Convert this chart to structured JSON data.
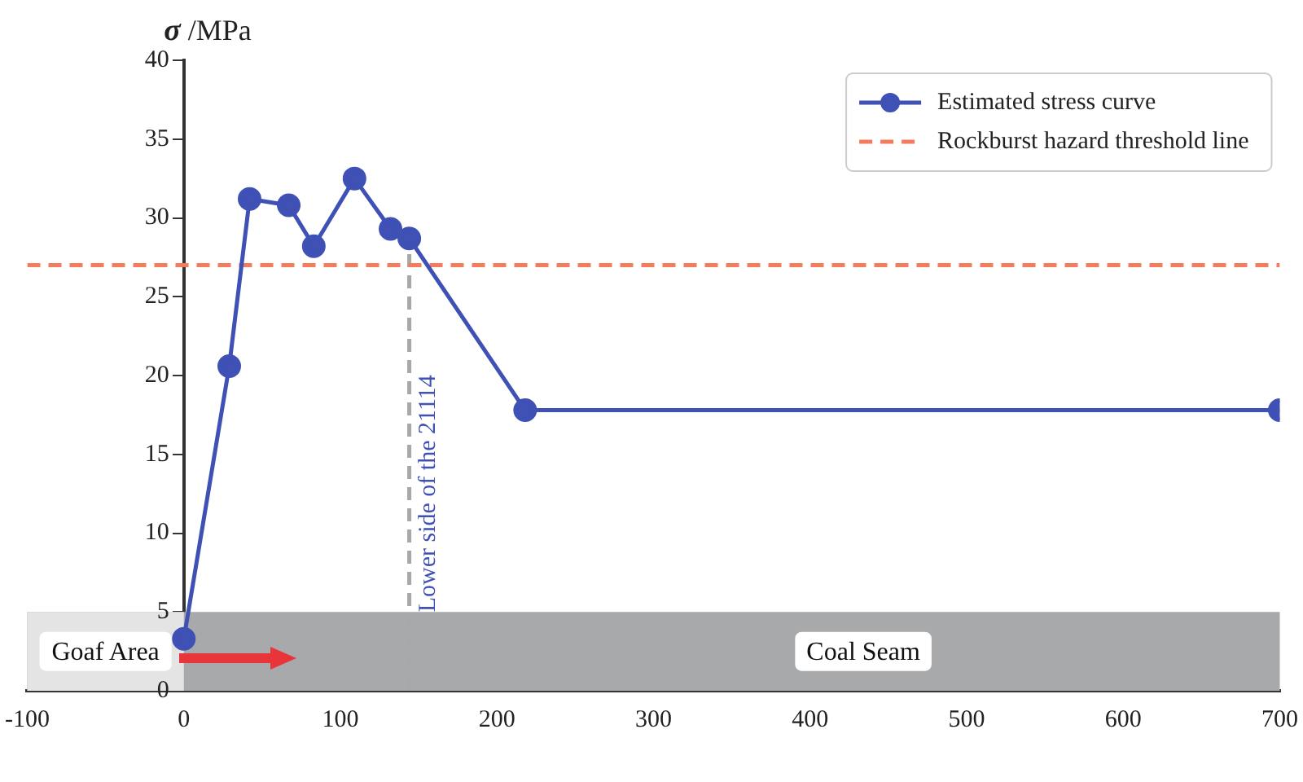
{
  "chart_data": {
    "type": "line",
    "ylabel": "σ /MPa",
    "x": [
      0,
      29,
      42,
      67,
      83,
      109,
      132,
      144,
      218,
      700
    ],
    "series": [
      {
        "name": "Estimated stress curve",
        "color": "#3f51b5",
        "values": [
          3.3,
          20.6,
          31.2,
          30.8,
          28.2,
          32.5,
          29.3,
          28.7,
          17.8,
          17.8
        ]
      }
    ],
    "xlim": [
      -100,
      700
    ],
    "xticks": [
      -100,
      0,
      100,
      200,
      300,
      400,
      500,
      600,
      700
    ],
    "ylim": [
      0,
      40
    ],
    "yticks": [
      0,
      5,
      10,
      15,
      20,
      25,
      30,
      35,
      40
    ],
    "marker": "circle",
    "line_style": "solid",
    "grid": false,
    "legend": "top right",
    "ref_lines": [
      {
        "axis": "y",
        "value": 27,
        "label": "Rockburst hazard threshold line",
        "color": "#f47b5c",
        "line_style": "dashed"
      },
      {
        "axis": "x",
        "value": 144,
        "label": "Lower side of the 21114",
        "color": "#a8a8a8",
        "line_style": "dashed"
      }
    ],
    "bands": [
      {
        "axis": "y",
        "from": 0,
        "to": 5,
        "label": "Coal Seam",
        "color": "#a8a9ab"
      },
      {
        "axis": "x",
        "from": -100,
        "to": 0,
        "label": "Goaf Area",
        "color": "#e4e4e4"
      }
    ]
  }
}
